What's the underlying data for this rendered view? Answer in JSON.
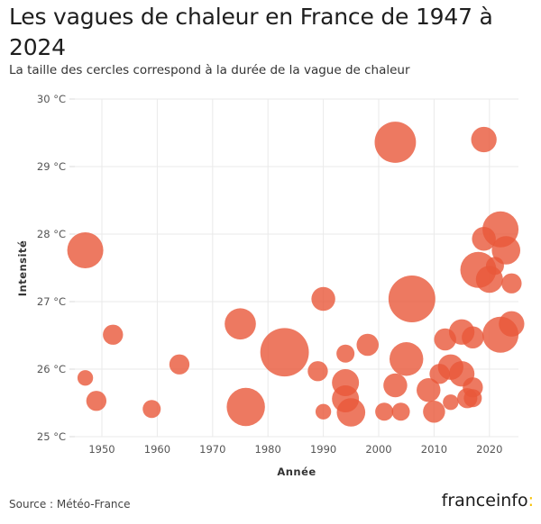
{
  "header": {
    "title": "Les vagues de chaleur en France de 1947 à 2024",
    "subtitle": "La taille des cercles correspond à la durée de la vague de chaleur"
  },
  "footer": {
    "source": "Source : Météo-France",
    "logo_text": "franceinfo",
    "logo_colon": ":"
  },
  "colors": {
    "bubble": "#e8573a",
    "grid": "#eaeaea",
    "logo_accent": "#f6c000"
  },
  "chart_data": {
    "type": "scatter",
    "title": "Les vagues de chaleur en France de 1947 à 2024",
    "subtitle": "La taille des cercles correspond à la durée de la vague de chaleur",
    "xlabel": "Année",
    "ylabel": "Intensité",
    "xlim": [
      1945,
      2025
    ],
    "ylim": [
      25,
      30
    ],
    "x_ticks": [
      1950,
      1960,
      1970,
      1980,
      1990,
      2000,
      2010,
      2020
    ],
    "x_tick_labels": [
      "1950",
      "1960",
      "1970",
      "1980",
      "1990",
      "2000",
      "2010",
      "2020"
    ],
    "y_ticks": [
      25,
      26,
      27,
      28,
      29,
      30
    ],
    "y_tick_labels": [
      "25 °C",
      "26 °C",
      "27 °C",
      "28 °C",
      "29 °C",
      "30 °C"
    ],
    "grid": true,
    "size_encoding": "durée (jours, estimée)",
    "points": [
      {
        "year": 1947,
        "intensity": 27.76,
        "duration": 16
      },
      {
        "year": 1947,
        "intensity": 25.87,
        "duration": 3
      },
      {
        "year": 1949,
        "intensity": 25.53,
        "duration": 5
      },
      {
        "year": 1952,
        "intensity": 26.51,
        "duration": 5
      },
      {
        "year": 1959,
        "intensity": 25.41,
        "duration": 4
      },
      {
        "year": 1964,
        "intensity": 26.07,
        "duration": 5
      },
      {
        "year": 1975,
        "intensity": 26.67,
        "duration": 12
      },
      {
        "year": 1976,
        "intensity": 25.44,
        "duration": 18
      },
      {
        "year": 1983,
        "intensity": 26.25,
        "duration": 29
      },
      {
        "year": 1989,
        "intensity": 25.97,
        "duration": 5
      },
      {
        "year": 1990,
        "intensity": 27.04,
        "duration": 7
      },
      {
        "year": 1990,
        "intensity": 25.37,
        "duration": 3
      },
      {
        "year": 1994,
        "intensity": 26.23,
        "duration": 4
      },
      {
        "year": 1994,
        "intensity": 25.8,
        "duration": 9
      },
      {
        "year": 1994,
        "intensity": 25.56,
        "duration": 9
      },
      {
        "year": 1995,
        "intensity": 25.36,
        "duration": 10
      },
      {
        "year": 1998,
        "intensity": 26.36,
        "duration": 6
      },
      {
        "year": 2001,
        "intensity": 25.37,
        "duration": 4
      },
      {
        "year": 2003,
        "intensity": 29.36,
        "duration": 21
      },
      {
        "year": 2003,
        "intensity": 25.76,
        "duration": 7
      },
      {
        "year": 2004,
        "intensity": 25.37,
        "duration": 4
      },
      {
        "year": 2005,
        "intensity": 26.15,
        "duration": 14
      },
      {
        "year": 2006,
        "intensity": 27.04,
        "duration": 27
      },
      {
        "year": 2009,
        "intensity": 25.69,
        "duration": 7
      },
      {
        "year": 2010,
        "intensity": 25.37,
        "duration": 6
      },
      {
        "year": 2011,
        "intensity": 25.93,
        "duration": 5
      },
      {
        "year": 2012,
        "intensity": 26.44,
        "duration": 6
      },
      {
        "year": 2013,
        "intensity": 26.03,
        "duration": 8
      },
      {
        "year": 2013,
        "intensity": 25.51,
        "duration": 3
      },
      {
        "year": 2015,
        "intensity": 26.55,
        "duration": 8
      },
      {
        "year": 2015,
        "intensity": 25.93,
        "duration": 8
      },
      {
        "year": 2016,
        "intensity": 25.57,
        "duration": 5
      },
      {
        "year": 2017,
        "intensity": 26.47,
        "duration": 6
      },
      {
        "year": 2017,
        "intensity": 25.73,
        "duration": 5
      },
      {
        "year": 2017,
        "intensity": 25.57,
        "duration": 4
      },
      {
        "year": 2018,
        "intensity": 27.47,
        "duration": 16
      },
      {
        "year": 2019,
        "intensity": 29.4,
        "duration": 8
      },
      {
        "year": 2019,
        "intensity": 27.93,
        "duration": 7
      },
      {
        "year": 2020,
        "intensity": 27.33,
        "duration": 9
      },
      {
        "year": 2021,
        "intensity": 27.53,
        "duration": 4
      },
      {
        "year": 2022,
        "intensity": 28.07,
        "duration": 16
      },
      {
        "year": 2022,
        "intensity": 26.51,
        "duration": 16
      },
      {
        "year": 2023,
        "intensity": 27.76,
        "duration": 10
      },
      {
        "year": 2024,
        "intensity": 26.67,
        "duration": 8
      },
      {
        "year": 2024,
        "intensity": 27.27,
        "duration": 5
      }
    ]
  }
}
